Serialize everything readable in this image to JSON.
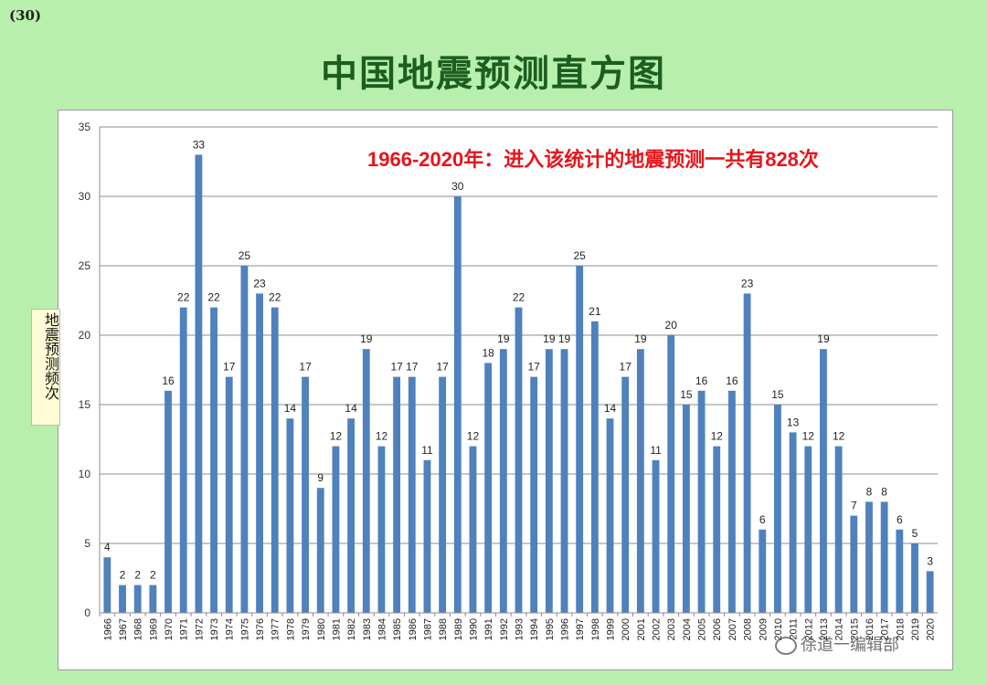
{
  "slide_number": "(30)",
  "page_title": "中国地震预测直方图",
  "watermark": "徐道一编辑部",
  "colors": {
    "bar": "#4f81bd",
    "annotation": "#e8141b",
    "title": "#1b5e20",
    "background": "#b9efac"
  },
  "chart_data": {
    "type": "bar",
    "title": "中国地震预测直方图",
    "ylabel": "地震预测频次",
    "xlabel": "",
    "annotation": "1966-2020年：进入该统计的地震预测一共有828次",
    "ylim": [
      0,
      35
    ],
    "yticks": [
      0,
      5,
      10,
      15,
      20,
      25,
      30,
      35
    ],
    "grid": true,
    "categories": [
      "1966",
      "1967",
      "1968",
      "1969",
      "1970",
      "1971",
      "1972",
      "1973",
      "1974",
      "1975",
      "1976",
      "1977",
      "1978",
      "1979",
      "1980",
      "1981",
      "1982",
      "1983",
      "1984",
      "1985",
      "1986",
      "1987",
      "1988",
      "1989",
      "1990",
      "1991",
      "1992",
      "1993",
      "1994",
      "1995",
      "1996",
      "1997",
      "1998",
      "1999",
      "2000",
      "2001",
      "2002",
      "2003",
      "2004",
      "2005",
      "2006",
      "2007",
      "2008",
      "2009",
      "2010",
      "2011",
      "2012",
      "2013",
      "2014",
      "2015",
      "2016",
      "2017",
      "2018",
      "2019",
      "2020"
    ],
    "values": [
      4,
      2,
      2,
      2,
      16,
      22,
      33,
      22,
      17,
      25,
      23,
      22,
      14,
      17,
      9,
      12,
      14,
      19,
      12,
      17,
      17,
      11,
      17,
      30,
      12,
      18,
      19,
      22,
      17,
      19,
      19,
      25,
      21,
      14,
      17,
      19,
      11,
      20,
      15,
      16,
      12,
      16,
      23,
      6,
      15,
      13,
      12,
      19,
      12,
      7,
      8,
      8,
      6,
      5,
      3
    ]
  }
}
